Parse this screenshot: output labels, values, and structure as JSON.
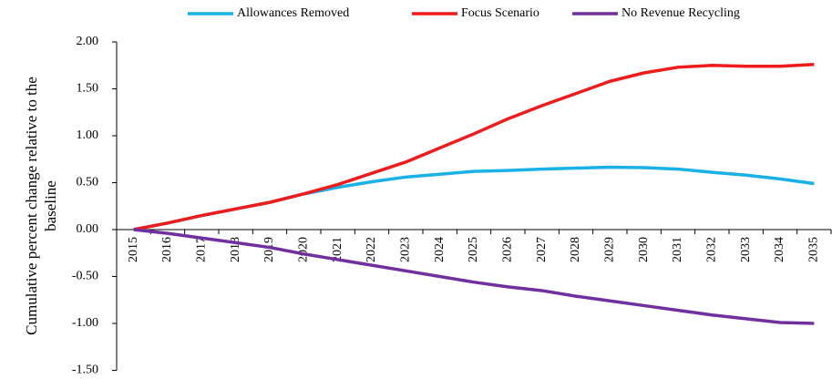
{
  "chart_data": {
    "type": "line",
    "y_label": "Cumulative percent change relative to the baseline",
    "categories": [
      "2015",
      "2016",
      "2017",
      "2018",
      "2019",
      "2020",
      "2021",
      "2022",
      "2023",
      "2024",
      "2025",
      "2026",
      "2027",
      "2028",
      "2029",
      "2030",
      "2031",
      "2032",
      "2033",
      "2034",
      "2035"
    ],
    "series": [
      {
        "name": "Allowances Removed",
        "color": "#1ab0e8",
        "values": [
          0,
          0.07,
          0.15,
          0.22,
          0.29,
          0.38,
          0.45,
          0.51,
          0.56,
          0.59,
          0.62,
          0.63,
          0.645,
          0.655,
          0.665,
          0.66,
          0.645,
          0.61,
          0.58,
          0.54,
          0.49
        ]
      },
      {
        "name": "Focus Scenario",
        "color": "#ee1c1c",
        "values": [
          0,
          0.07,
          0.15,
          0.22,
          0.29,
          0.38,
          0.48,
          0.6,
          0.72,
          0.87,
          1.02,
          1.18,
          1.32,
          1.45,
          1.58,
          1.67,
          1.73,
          1.75,
          1.74,
          1.74,
          1.76
        ]
      },
      {
        "name": "No Revenue Recycling",
        "color": "#7030a0",
        "values": [
          0,
          -0.04,
          -0.09,
          -0.14,
          -0.19,
          -0.26,
          -0.32,
          -0.38,
          -0.44,
          -0.5,
          -0.56,
          -0.61,
          -0.65,
          -0.71,
          -0.76,
          -0.81,
          -0.86,
          -0.91,
          -0.95,
          -0.99,
          -1.0
        ]
      }
    ],
    "ylim": [
      -1.5,
      2
    ],
    "yticks": [
      {
        "value": -1.5,
        "label": "-1.50"
      },
      {
        "value": -1,
        "label": "-1.00"
      },
      {
        "value": -0.5,
        "label": "-0.50"
      },
      {
        "value": 0,
        "label": "0.00"
      },
      {
        "value": 0.5,
        "label": "0.50"
      },
      {
        "value": 1,
        "label": "1.00"
      },
      {
        "value": 1.5,
        "label": "1.50"
      },
      {
        "value": 2,
        "label": "2.00"
      }
    ],
    "legend": "top",
    "grid": false
  }
}
